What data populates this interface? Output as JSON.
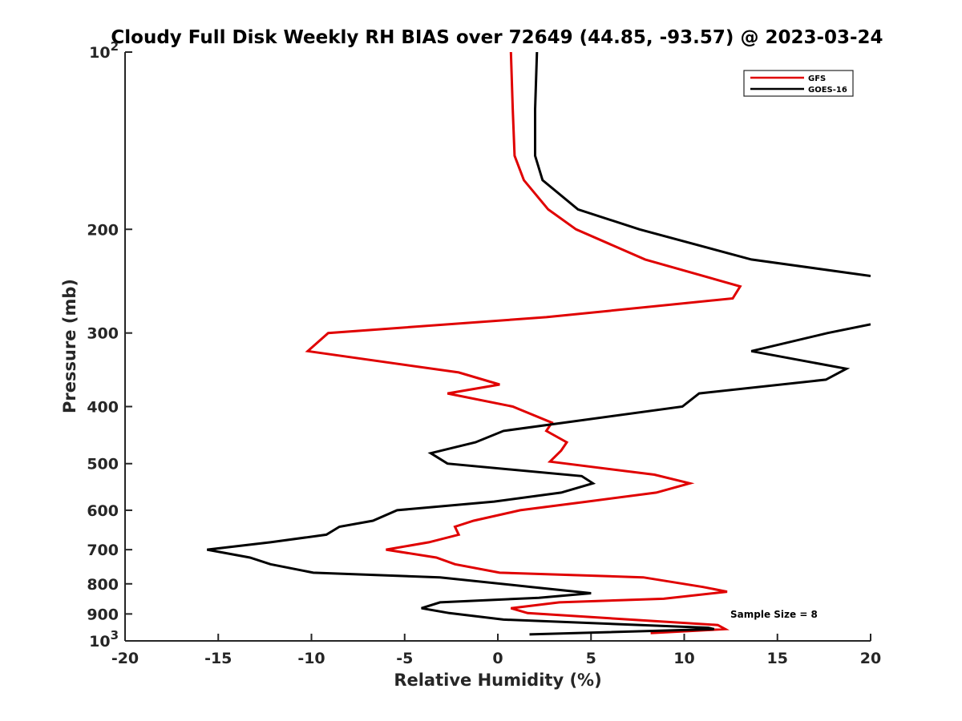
{
  "chart_data": {
    "type": "line",
    "title": "Cloudy Full Disk Weekly RH BIAS over 72649 (44.85, -93.57) @ 2023-03-24",
    "xlabel": "Relative Humidity (%)",
    "ylabel": "Pressure (mb)",
    "xlim": [
      -20,
      20
    ],
    "ylim": [
      100,
      1000
    ],
    "y_scale": "log",
    "y_reversed": true,
    "grid": false,
    "legend_position": "top-right",
    "x_ticks": [
      -20,
      -15,
      -10,
      -5,
      0,
      5,
      10,
      15,
      20
    ],
    "x_tick_labels": [
      "-20",
      "-15",
      "-10",
      "-5",
      "0",
      "5",
      "10",
      "15",
      "20"
    ],
    "y_ticks": [
      100,
      200,
      300,
      400,
      500,
      600,
      700,
      800,
      900,
      1000
    ],
    "y_tick_labels": [
      {
        "base": "10",
        "exp": "2"
      },
      {
        "base": "200",
        "exp": ""
      },
      {
        "base": "300",
        "exp": ""
      },
      {
        "base": "400",
        "exp": ""
      },
      {
        "base": "500",
        "exp": ""
      },
      {
        "base": "600",
        "exp": ""
      },
      {
        "base": "700",
        "exp": ""
      },
      {
        "base": "800",
        "exp": ""
      },
      {
        "base": "900",
        "exp": ""
      },
      {
        "base": "10",
        "exp": "3"
      }
    ],
    "series": [
      {
        "name": "GFS",
        "color": "#e00000",
        "points": [
          [
            0.7,
            100
          ],
          [
            0.8,
            125
          ],
          [
            0.9,
            150
          ],
          [
            1.4,
            165
          ],
          [
            2.7,
            185
          ],
          [
            4.2,
            200
          ],
          [
            7.9,
            225
          ],
          [
            13.0,
            250
          ],
          [
            12.6,
            262
          ],
          [
            2.6,
            282
          ],
          [
            -9.1,
            300
          ],
          [
            -10.2,
            322
          ],
          [
            -2.1,
            350
          ],
          [
            0.1,
            367
          ],
          [
            -2.7,
            380
          ],
          [
            0.8,
            400
          ],
          [
            2.9,
            426
          ],
          [
            2.6,
            440
          ],
          [
            3.7,
            460
          ],
          [
            3.4,
            475
          ],
          [
            2.8,
            496
          ],
          [
            8.4,
            522
          ],
          [
            10.3,
            540
          ],
          [
            8.5,
            560
          ],
          [
            4.8,
            580
          ],
          [
            1.2,
            600
          ],
          [
            -1.3,
            625
          ],
          [
            -2.3,
            640
          ],
          [
            -2.1,
            660
          ],
          [
            -3.7,
            680
          ],
          [
            -6.0,
            700
          ],
          [
            -3.3,
            722
          ],
          [
            -2.3,
            741
          ],
          [
            0.1,
            766
          ],
          [
            7.8,
            780
          ],
          [
            11.0,
            810
          ],
          [
            12.3,
            825
          ],
          [
            8.9,
            848
          ],
          [
            3.3,
            860
          ],
          [
            0.7,
            880
          ],
          [
            1.6,
            897
          ],
          [
            11.8,
            940
          ],
          [
            12.2,
            955
          ],
          [
            8.2,
            970
          ]
        ]
      },
      {
        "name": "GOES-16",
        "color": "#000000",
        "points": [
          [
            2.1,
            100
          ],
          [
            2.0,
            125
          ],
          [
            2.0,
            150
          ],
          [
            2.4,
            165
          ],
          [
            4.3,
            185
          ],
          [
            7.6,
            200
          ],
          [
            13.6,
            225
          ],
          [
            20.0,
            240
          ],
          [
            null,
            262
          ],
          [
            20.0,
            290
          ],
          [
            17.7,
            300
          ],
          [
            13.6,
            322
          ],
          [
            18.7,
            345
          ],
          [
            17.6,
            360
          ],
          [
            10.8,
            380
          ],
          [
            9.9,
            400
          ],
          [
            0.3,
            440
          ],
          [
            -1.2,
            460
          ],
          [
            -3.6,
            480
          ],
          [
            -2.7,
            500
          ],
          [
            4.5,
            525
          ],
          [
            5.1,
            540
          ],
          [
            3.4,
            560
          ],
          [
            -0.2,
            580
          ],
          [
            -5.4,
            600
          ],
          [
            -6.7,
            625
          ],
          [
            -8.5,
            640
          ],
          [
            -9.2,
            660
          ],
          [
            -12.2,
            680
          ],
          [
            -15.6,
            700
          ],
          [
            -13.3,
            722
          ],
          [
            -12.2,
            741
          ],
          [
            -9.9,
            766
          ],
          [
            -3.1,
            780
          ],
          [
            1.8,
            810
          ],
          [
            5.0,
            830
          ],
          [
            2.2,
            845
          ],
          [
            -3.1,
            860
          ],
          [
            -4.1,
            880
          ],
          [
            -2.6,
            897
          ],
          [
            0.3,
            920
          ],
          [
            11.3,
            950
          ],
          [
            11.6,
            955
          ],
          [
            1.7,
            975
          ]
        ]
      }
    ],
    "annotation": "Sample Size = 8"
  }
}
